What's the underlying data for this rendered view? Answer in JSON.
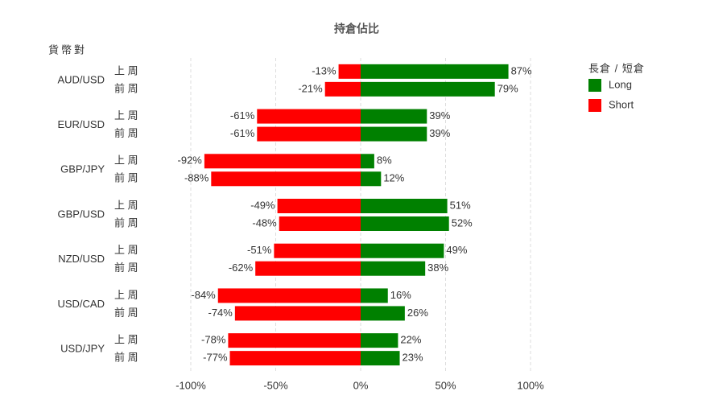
{
  "chart_data": {
    "type": "diverging_bar",
    "title": "持倉佔比",
    "y_label": "貨幣對",
    "legend_title": "長倉 / 短倉",
    "categories": [
      "AUD/USD",
      "EUR/USD",
      "GBP/JPY",
      "GBP/USD",
      "NZD/USD",
      "USD/CAD",
      "USD/JPY"
    ],
    "periods": [
      "上 周",
      "前 周"
    ],
    "series": [
      {
        "name": "Long",
        "color": "#008000",
        "values": [
          [
            87,
            79
          ],
          [
            39,
            39
          ],
          [
            8,
            12
          ],
          [
            51,
            52
          ],
          [
            49,
            38
          ],
          [
            16,
            26
          ],
          [
            22,
            23
          ]
        ],
        "value_labels": [
          [
            "87%",
            "79%"
          ],
          [
            "39%",
            "39%"
          ],
          [
            "8%",
            "12%"
          ],
          [
            "51%",
            "52%"
          ],
          [
            "49%",
            "38%"
          ],
          [
            "16%",
            "26%"
          ],
          [
            "22%",
            "23%"
          ]
        ]
      },
      {
        "name": "Short",
        "color": "#ff0000",
        "values": [
          [
            -13,
            -21
          ],
          [
            -61,
            -61
          ],
          [
            -92,
            -88
          ],
          [
            -49,
            -48
          ],
          [
            -51,
            -62
          ],
          [
            -84,
            -74
          ],
          [
            -78,
            -77
          ]
        ],
        "value_labels": [
          [
            "-13%",
            "-21%"
          ],
          [
            "-61%",
            "-61%"
          ],
          [
            "-92%",
            "-88%"
          ],
          [
            "-49%",
            "-48%"
          ],
          [
            "-51%",
            "-62%"
          ],
          [
            "-84%",
            "-74%"
          ],
          [
            "-78%",
            "-77%"
          ]
        ]
      }
    ],
    "xlim": [
      -100,
      100
    ],
    "xticks": [
      {
        "value": -100,
        "label": "-100%"
      },
      {
        "value": -50,
        "label": "-50%"
      },
      {
        "value": 0,
        "label": "0%"
      },
      {
        "value": 50,
        "label": "50%"
      },
      {
        "value": 100,
        "label": "100%"
      }
    ],
    "grid": true,
    "legend": "right"
  }
}
